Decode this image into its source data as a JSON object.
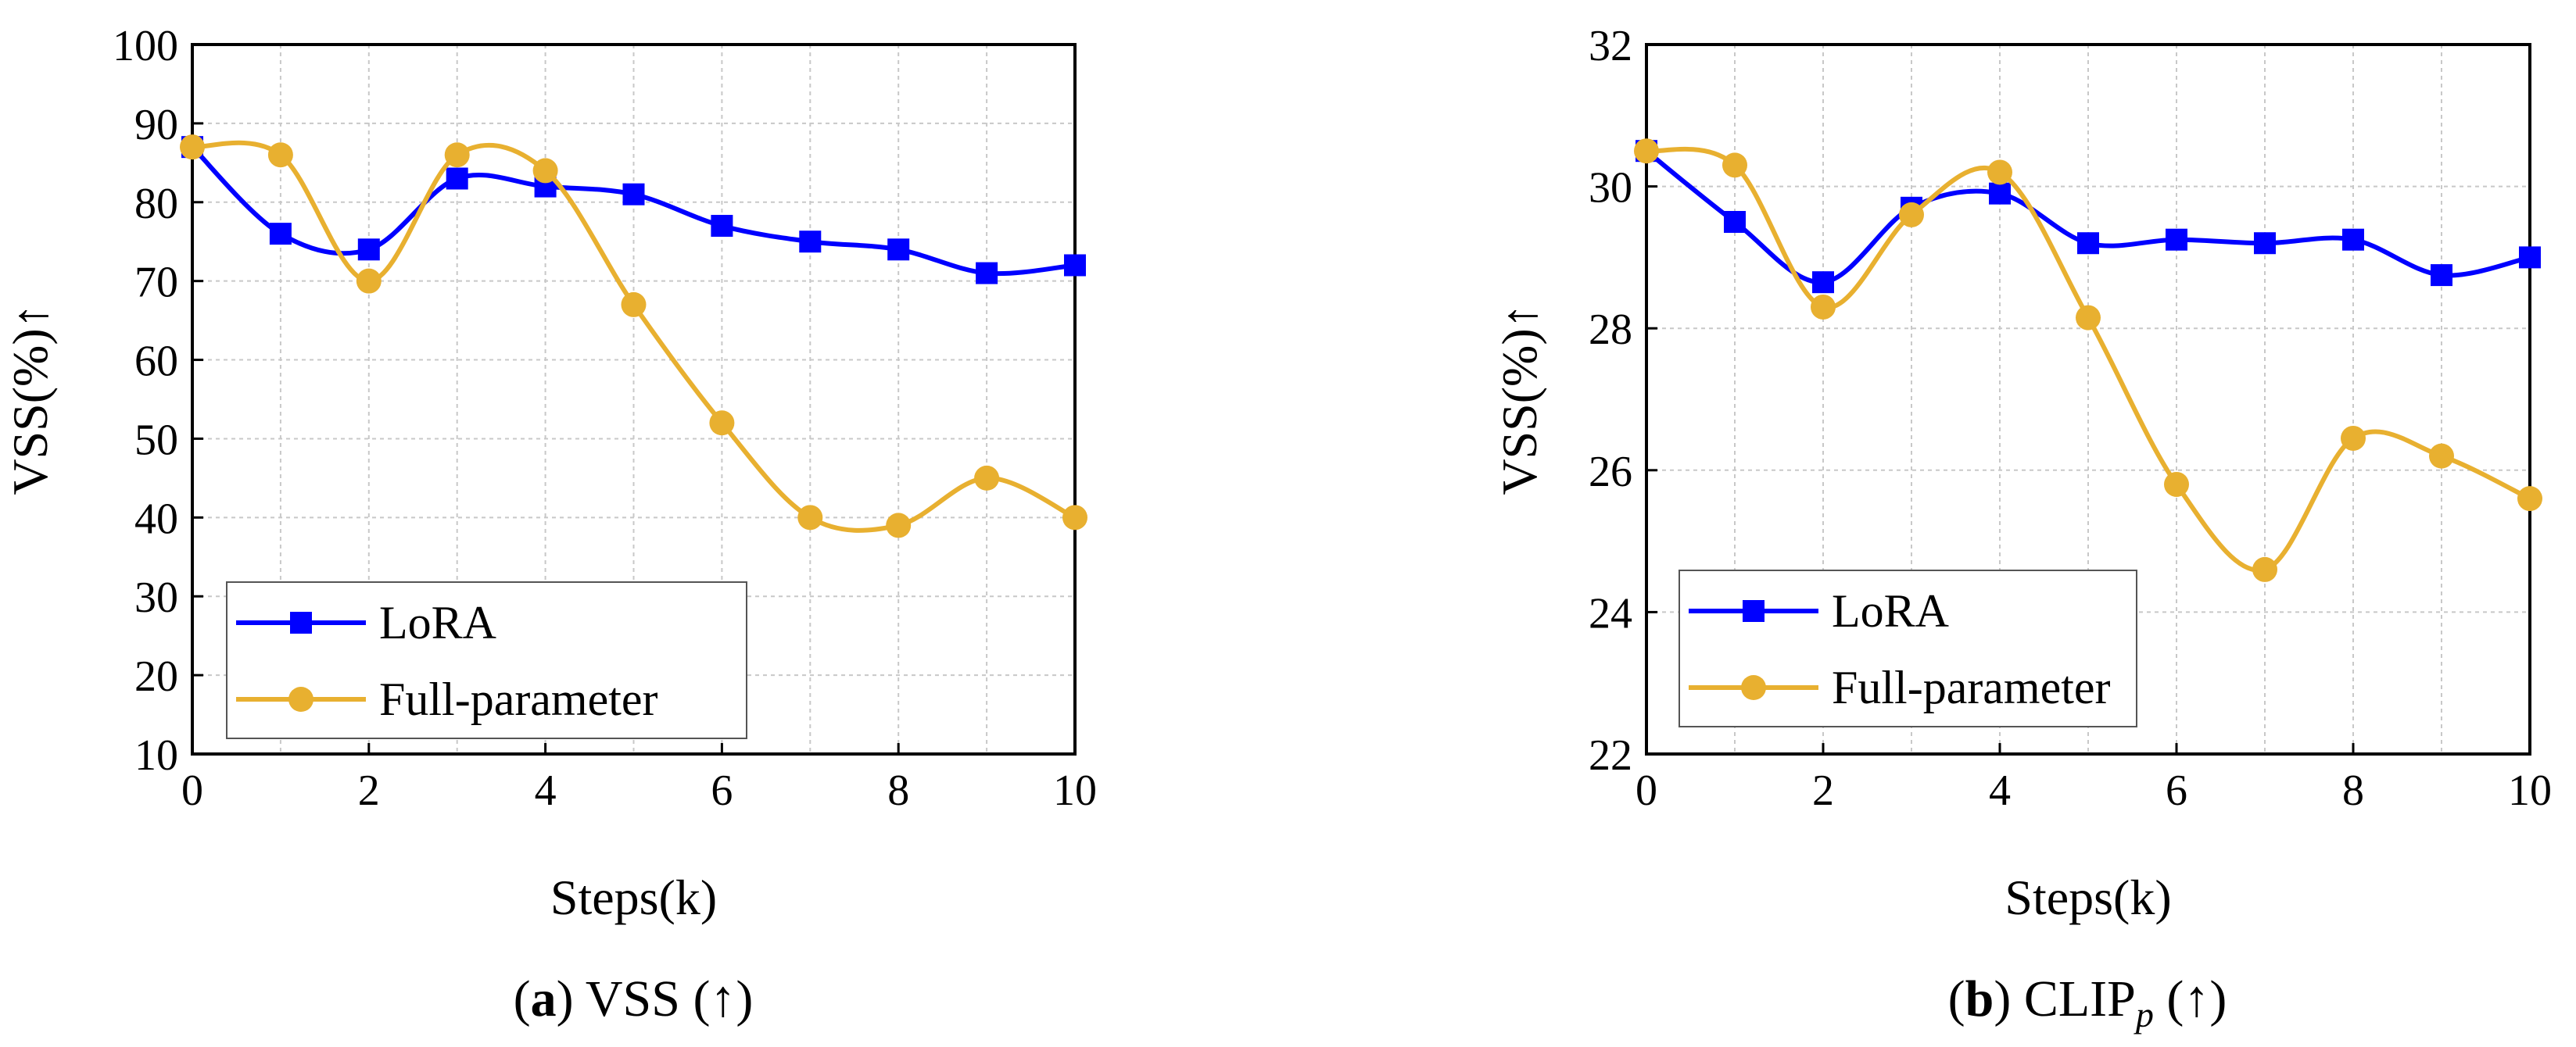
{
  "chart_data": [
    {
      "type": "line",
      "xlabel": "Steps(k)",
      "ylabel": "VSS(%)↑",
      "xlim": [
        0,
        10
      ],
      "ylim": [
        10,
        100
      ],
      "xticks": [
        "0",
        "2",
        "4",
        "6",
        "8",
        "10"
      ],
      "yticks": [
        "10",
        "20",
        "30",
        "40",
        "50",
        "60",
        "70",
        "80",
        "90",
        "100"
      ],
      "grid": true,
      "legend_position": "bottom-left",
      "caption": {
        "letter": "a",
        "rest": " VSS (↑)"
      },
      "series": [
        {
          "name": "LoRA",
          "color": "#0000ff",
          "marker": "square",
          "x": [
            0,
            1,
            2,
            3,
            4,
            5,
            6,
            7,
            8,
            9,
            10
          ],
          "y": [
            87,
            76,
            74,
            83,
            82,
            81,
            77,
            75,
            74,
            71,
            72
          ]
        },
        {
          "name": "Full-parameter",
          "color": "#e8b030",
          "marker": "circle",
          "x": [
            0,
            1,
            2,
            3,
            4,
            5,
            6,
            7,
            8,
            9,
            10
          ],
          "y": [
            87,
            86,
            70,
            86,
            84,
            67,
            52,
            40,
            39,
            45,
            40
          ]
        }
      ]
    },
    {
      "type": "line",
      "xlabel": "Steps(k)",
      "ylabel": "VSS(%)↑",
      "xlim": [
        0,
        10
      ],
      "ylim": [
        22,
        32
      ],
      "xticks": [
        "0",
        "2",
        "4",
        "6",
        "8",
        "10"
      ],
      "yticks": [
        "22",
        "24",
        "26",
        "28",
        "30",
        "32"
      ],
      "grid": true,
      "legend_position": "bottom-left",
      "caption": {
        "letter": "b",
        "rest": " CLIP",
        "sub": "p",
        "tail": " (↑)"
      },
      "series": [
        {
          "name": "LoRA",
          "color": "#0000ff",
          "marker": "square",
          "x": [
            0,
            1,
            2,
            3,
            4,
            5,
            6,
            7,
            8,
            9,
            10
          ],
          "y": [
            30.5,
            29.5,
            28.65,
            29.7,
            29.9,
            29.2,
            29.25,
            29.2,
            29.25,
            28.75,
            29.0
          ]
        },
        {
          "name": "Full-parameter",
          "color": "#e8b030",
          "marker": "circle",
          "x": [
            0,
            1,
            2,
            3,
            4,
            5,
            6,
            7,
            8,
            9,
            10
          ],
          "y": [
            30.5,
            30.3,
            28.3,
            29.6,
            30.2,
            28.15,
            25.8,
            24.6,
            26.45,
            26.2,
            25.6
          ]
        }
      ]
    }
  ]
}
